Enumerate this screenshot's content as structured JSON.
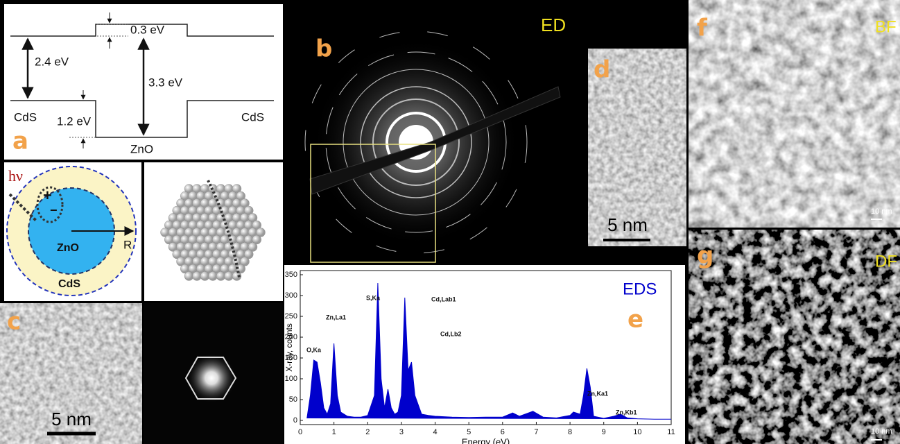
{
  "panels": {
    "band_diagram": {
      "label": "a",
      "offset_top": "0.3 eV",
      "gap_cds": "2.4 eV",
      "gap_zno": "3.3 eV",
      "offset_bottom": "1.2 eV",
      "left_material": "CdS",
      "right_material": "CdS",
      "center_material": "ZnO"
    },
    "core_shell": {
      "photon": "hν",
      "hole": "+",
      "electron": "−",
      "core": "ZnO",
      "shell": "CdS",
      "radius": "R"
    },
    "hrtem": {
      "label": "c",
      "scale": "5 nm"
    },
    "diffraction": {
      "label": "b",
      "mode": "ED"
    },
    "lattice": {
      "label": "d",
      "scale": "5 nm"
    },
    "bright_field": {
      "label": "f",
      "mode": "BF",
      "scale": "10 nm"
    },
    "dark_field": {
      "label": "g",
      "mode": "DF",
      "scale": "10 nm"
    }
  },
  "chart_data": {
    "type": "area",
    "title": "EDS",
    "panel_label": "e",
    "x_label": "Energy (eV)",
    "y_label": "X-ray, counts",
    "color": "#0000cc",
    "x": [
      0.2,
      0.3,
      0.4,
      0.5,
      0.6,
      0.7,
      0.8,
      0.9,
      1.0,
      1.1,
      1.2,
      1.4,
      1.6,
      1.8,
      2.0,
      2.2,
      2.3,
      2.4,
      2.5,
      2.6,
      2.7,
      2.8,
      2.9,
      3.0,
      3.1,
      3.2,
      3.3,
      3.4,
      3.6,
      3.8,
      4.0,
      4.5,
      5.0,
      5.5,
      6.0,
      6.3,
      6.5,
      6.9,
      7.2,
      7.6,
      8.0,
      8.1,
      8.3,
      8.4,
      8.5,
      8.6,
      8.7,
      9.0,
      9.3,
      9.5,
      9.7,
      10.0,
      10.5,
      11.0
    ],
    "values": [
      5,
      60,
      145,
      140,
      90,
      30,
      15,
      40,
      185,
      60,
      20,
      10,
      8,
      8,
      12,
      60,
      330,
      100,
      30,
      75,
      30,
      15,
      20,
      60,
      295,
      120,
      140,
      60,
      15,
      12,
      10,
      8,
      7,
      8,
      8,
      18,
      10,
      22,
      8,
      6,
      12,
      20,
      15,
      60,
      125,
      80,
      10,
      5,
      10,
      15,
      6,
      4,
      3,
      3
    ],
    "xlim": [
      0,
      11
    ],
    "ylim": [
      -10,
      360
    ],
    "xticks": [
      0,
      1,
      2,
      3,
      4,
      5,
      6,
      7,
      8,
      9,
      10,
      11
    ],
    "yticks": [
      0,
      50,
      100,
      150,
      200,
      250,
      300,
      350
    ],
    "annotations": [
      "O,Ka",
      "Zn,La1",
      "S,Ka",
      "Cd,Lab1",
      "Cd,Lb2",
      "Zn,Ka1",
      "Zn,Kb1"
    ]
  }
}
